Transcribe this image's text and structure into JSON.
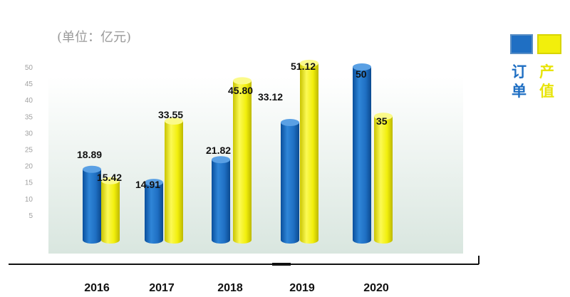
{
  "unit_label": "(单位：亿元)",
  "colors": {
    "orders": "#1f6fc3",
    "output": "#f2ef0c"
  },
  "legend": {
    "items": [
      {
        "text": "订单",
        "color": "#1f6fc3"
      },
      {
        "text": "产值",
        "color": "#e8e40a"
      }
    ]
  },
  "chart_data": {
    "type": "bar",
    "categories": [
      "2016",
      "2017",
      "2018",
      "2019",
      "2020"
    ],
    "series": [
      {
        "name": "订单",
        "values": [
          18.89,
          14.91,
          21.82,
          33.12,
          50
        ],
        "labels": [
          "18.89",
          "14.91",
          "21.82",
          "33.12",
          "50"
        ]
      },
      {
        "name": "产值",
        "values": [
          15.42,
          33.55,
          45.8,
          51.12,
          35
        ],
        "labels": [
          "15.42",
          "33.55",
          "45.80",
          "51.12",
          "35"
        ]
      }
    ],
    "yticks": [
      "5",
      "10",
      "15",
      "20",
      "25",
      "30",
      "35",
      "40",
      "45",
      "50"
    ],
    "ylim": [
      0,
      52
    ],
    "grid": false
  }
}
